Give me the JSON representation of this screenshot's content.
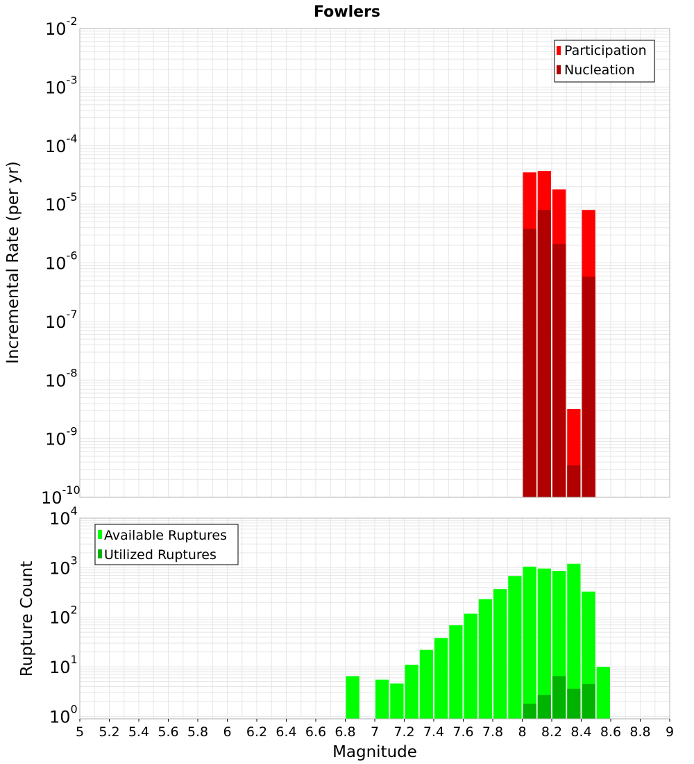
{
  "colors": {
    "participation": "#ff0000",
    "nucleation": "#b00000",
    "available": "#00ff00",
    "utilized": "#00b300",
    "grid": "#e6e6e6",
    "frame": "#b4b4b4"
  },
  "chart_data": [
    {
      "type": "bar",
      "title": "Fowlers",
      "ylabel": "Incremental Rate (per yr)",
      "xlabel": "",
      "yscale": "log",
      "ylim_exponents": [
        -10,
        -2
      ],
      "y_tick_exponents": [
        "-10",
        "-9",
        "-8",
        "-7",
        "-6",
        "-5",
        "-4",
        "-3",
        "-2"
      ],
      "xlim": [
        5,
        9
      ],
      "bin_width": 0.1,
      "legend": {
        "position": "top-right"
      },
      "series": [
        {
          "name": "Participation",
          "color_key": "participation",
          "x": [
            8.05,
            8.15,
            8.25,
            8.35,
            8.45
          ],
          "values": [
            3.5e-05,
            3.7e-05,
            1.8e-05,
            3.2e-09,
            8e-06
          ]
        },
        {
          "name": "Nucleation",
          "color_key": "nucleation",
          "x": [
            8.05,
            8.15,
            8.25,
            8.35,
            8.45
          ],
          "values": [
            3.8e-06,
            8e-06,
            2.1e-06,
            3.5e-10,
            5.8e-07
          ]
        }
      ]
    },
    {
      "type": "bar",
      "ylabel": "Rupture Count",
      "xlabel": "Magnitude",
      "yscale": "log",
      "ylim_exponents": [
        -0.05,
        4
      ],
      "y_tick_exponents": [
        "0",
        "1",
        "2",
        "3",
        "4"
      ],
      "xlim": [
        5,
        9
      ],
      "bin_width": 0.1,
      "x_ticks": [
        "5",
        "5.2",
        "5.4",
        "5.6",
        "5.8",
        "6",
        "6.2",
        "6.4",
        "6.6",
        "6.8",
        "7",
        "7.2",
        "7.4",
        "7.6",
        "7.8",
        "8",
        "8.2",
        "8.4",
        "8.6",
        "8.8",
        "9"
      ],
      "legend": {
        "position": "top-left"
      },
      "series": [
        {
          "name": "Available Ruptures",
          "color_key": "available",
          "x": [
            6.85,
            7.05,
            7.15,
            7.25,
            7.35,
            7.45,
            7.55,
            7.65,
            7.75,
            7.85,
            7.95,
            8.05,
            8.15,
            8.25,
            8.35,
            8.45,
            8.55
          ],
          "values": [
            6.5,
            5.5,
            4.6,
            11,
            22,
            38,
            69,
            118,
            232,
            370,
            680,
            1050,
            960,
            860,
            1200,
            330,
            10
          ]
        },
        {
          "name": "Utilized Ruptures",
          "color_key": "utilized",
          "x": [
            8.05,
            8.15,
            8.25,
            8.35,
            8.45
          ],
          "values": [
            1.8,
            2.7,
            6.5,
            3.6,
            4.5
          ]
        }
      ]
    }
  ]
}
